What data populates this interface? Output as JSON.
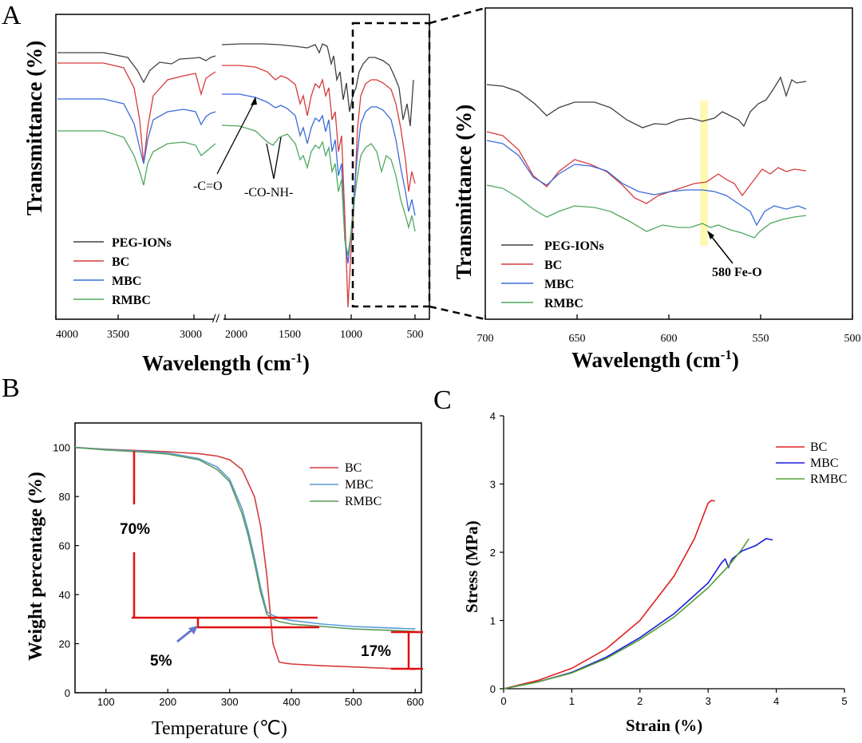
{
  "chart_data": [
    {
      "panel": "A",
      "type": "line",
      "subpanel": "left",
      "title": "",
      "xlabel": "Wavelength (cm",
      "xlabel_sup": "-1",
      "xlabel_end": ")",
      "ylabel": "Transmittance (%)",
      "x_ticks": [
        "4000",
        "3500",
        "3000",
        "2000",
        "1500",
        "1000",
        "500"
      ],
      "x_break": "//",
      "legend": [
        "PEG-IONs",
        "BC",
        "MBC",
        "RMBC"
      ],
      "colors": {
        "PEG-IONs": "#404040",
        "BC": "#d63b3b",
        "MBC": "#3b6bd9",
        "RMBC": "#4fa861"
      },
      "annotations": [
        "-C=O",
        "-CO-NH-"
      ]
    },
    {
      "panel": "A",
      "type": "line",
      "subpanel": "right",
      "xlabel": "Wavelength (cm",
      "xlabel_sup": "-1",
      "xlabel_end": ")",
      "ylabel": "Transmittance (%)",
      "xlim": [
        700,
        500
      ],
      "x_ticks": [
        "700",
        "650",
        "600",
        "550",
        "500"
      ],
      "legend": [
        "PEG-IONs",
        "BC",
        "MBC",
        "RMBC"
      ],
      "highlight_x": 580,
      "annotation": "580 Fe-O"
    },
    {
      "panel": "B",
      "type": "line",
      "xlabel": "Temperature (℃)",
      "ylabel": "Weight percentage (%)",
      "xlim": [
        50,
        610
      ],
      "ylim": [
        0,
        110
      ],
      "x_ticks": [
        100,
        200,
        300,
        400,
        500,
        600
      ],
      "y_ticks": [
        0,
        20,
        40,
        60,
        80,
        100
      ],
      "series": [
        {
          "name": "BC",
          "color": "#d63b3b",
          "x": [
            50,
            100,
            150,
            200,
            250,
            280,
            300,
            320,
            340,
            350,
            360,
            370,
            380,
            390,
            400,
            450,
            500,
            550,
            600
          ],
          "y": [
            100,
            99.3,
            98.8,
            98.3,
            97.5,
            96.5,
            95,
            91,
            80,
            68,
            48,
            20,
            12.5,
            12,
            11.7,
            11,
            10.5,
            10,
            9.5
          ]
        },
        {
          "name": "MBC",
          "color": "#5b9bd5",
          "x": [
            50,
            100,
            150,
            200,
            250,
            280,
            300,
            320,
            330,
            340,
            350,
            360,
            370,
            380,
            400,
            450,
            500,
            550,
            600
          ],
          "y": [
            100,
            99.2,
            98.6,
            97.8,
            95.5,
            92,
            87,
            75,
            66,
            55,
            43,
            33,
            31.5,
            30.5,
            29.5,
            28,
            27,
            26.5,
            26
          ]
        },
        {
          "name": "RMBC",
          "color": "#5a9a5a",
          "x": [
            50,
            100,
            150,
            200,
            250,
            280,
            300,
            320,
            330,
            340,
            350,
            360,
            370,
            380,
            400,
            450,
            500,
            550,
            600
          ],
          "y": [
            100,
            99,
            98.3,
            97.3,
            95,
            91,
            86,
            73,
            64,
            53,
            41,
            32,
            30,
            29,
            28,
            27,
            26,
            25.5,
            25
          ]
        }
      ],
      "annotations": {
        "loss_total": "70%",
        "diff": "5%",
        "residue": "17%"
      }
    },
    {
      "panel": "C",
      "type": "line",
      "xlabel": "Strain (%)",
      "ylabel": "Stress (MPa)",
      "xlim": [
        0,
        5
      ],
      "ylim": [
        0,
        4
      ],
      "x_ticks": [
        0,
        1,
        2,
        3,
        4,
        5
      ],
      "y_ticks": [
        0,
        1,
        2,
        3,
        4
      ],
      "series": [
        {
          "name": "BC",
          "color": "#e02020",
          "x": [
            0,
            0.5,
            1,
            1.5,
            2,
            2.5,
            2.8,
            3.0,
            3.05,
            3.1
          ],
          "y": [
            0,
            0.12,
            0.3,
            0.58,
            1.0,
            1.65,
            2.2,
            2.72,
            2.76,
            2.75
          ]
        },
        {
          "name": "MBC",
          "color": "#1b1be0",
          "x": [
            0,
            0.5,
            1,
            1.5,
            2,
            2.5,
            3.0,
            3.2,
            3.25,
            3.3,
            3.35,
            3.5,
            3.7,
            3.85,
            3.95
          ],
          "y": [
            0,
            0.1,
            0.24,
            0.46,
            0.75,
            1.1,
            1.55,
            1.85,
            1.9,
            1.78,
            1.9,
            2.02,
            2.1,
            2.2,
            2.18
          ]
        },
        {
          "name": "RMBC",
          "color": "#55a030",
          "x": [
            0,
            0.5,
            1,
            1.5,
            2,
            2.5,
            3.0,
            3.3,
            3.5,
            3.6
          ],
          "y": [
            0,
            0.1,
            0.23,
            0.44,
            0.72,
            1.05,
            1.48,
            1.8,
            2.05,
            2.2
          ]
        }
      ]
    }
  ],
  "panels": {
    "A": "A",
    "B": "B",
    "C": "C"
  }
}
